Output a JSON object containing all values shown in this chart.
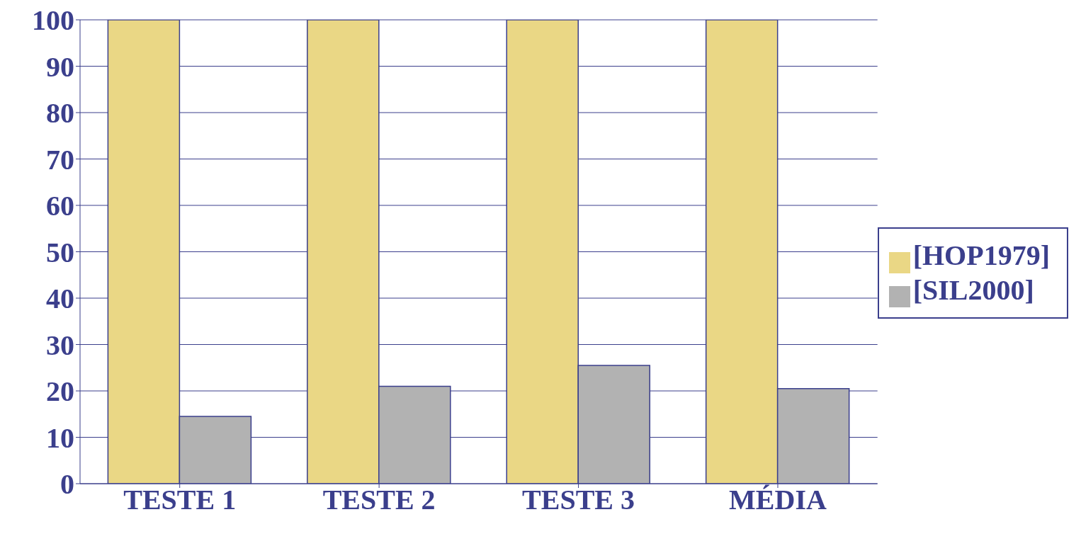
{
  "chart_data": {
    "type": "bar",
    "categories": [
      "TESTE 1",
      "TESTE 2",
      "TESTE 3",
      "MÉDIA"
    ],
    "series": [
      {
        "name": "[HOP1979]",
        "color": "#ead785",
        "values": [
          100,
          100,
          100,
          100
        ]
      },
      {
        "name": "[SIL2000]",
        "color": "#b2b2b2",
        "values": [
          14.5,
          21,
          25.5,
          20.5
        ]
      }
    ],
    "ylim": [
      0,
      100
    ],
    "yticks": [
      0,
      10,
      20,
      30,
      40,
      50,
      60,
      70,
      80,
      90,
      100
    ],
    "grid": "y",
    "legend": "right"
  }
}
